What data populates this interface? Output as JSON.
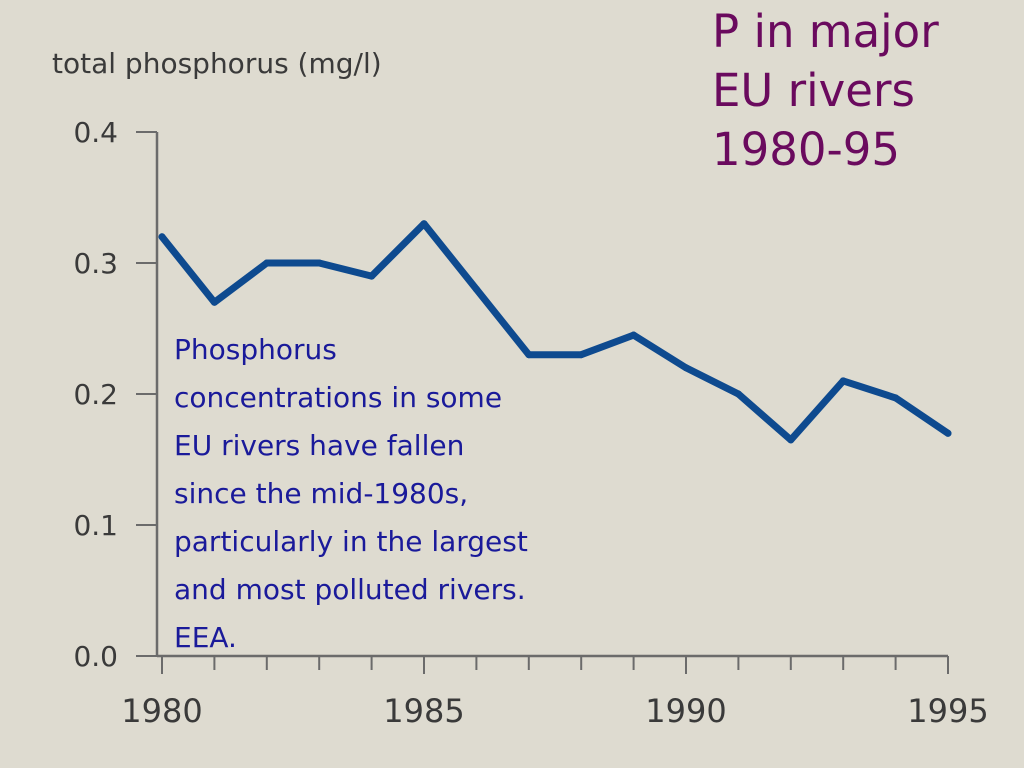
{
  "slide": {
    "title_lines": [
      "P in major",
      "EU rivers",
      "1980-95"
    ],
    "annotation_lines": [
      "Phosphorus",
      "concentrations in some",
      "EU rivers have fallen",
      "since the mid-1980s,",
      "particularly in the largest",
      "and most polluted rivers.",
      "EEA."
    ]
  },
  "chart_data": {
    "type": "line",
    "title": "",
    "xlabel": "",
    "ylabel": "total phosphorus (mg/l)",
    "xlim": [
      1980,
      1995
    ],
    "ylim": [
      0.0,
      0.4
    ],
    "yticks": [
      "0.0",
      "0.1",
      "0.2",
      "0.3",
      "0.4"
    ],
    "xtick_labels": [
      "1980",
      "1985",
      "1990",
      "1995"
    ],
    "grid": false,
    "series": [
      {
        "color": "#0e4a8f",
        "x": [
          1980,
          1981,
          1982,
          1983,
          1984,
          1985,
          1986,
          1987,
          1988,
          1989,
          1990,
          1991,
          1992,
          1993,
          1994,
          1995
        ],
        "values": [
          0.32,
          0.27,
          0.3,
          0.3,
          0.29,
          0.33,
          0.28,
          0.23,
          0.23,
          0.245,
          0.22,
          0.2,
          0.165,
          0.21,
          0.197,
          0.17
        ]
      }
    ]
  }
}
